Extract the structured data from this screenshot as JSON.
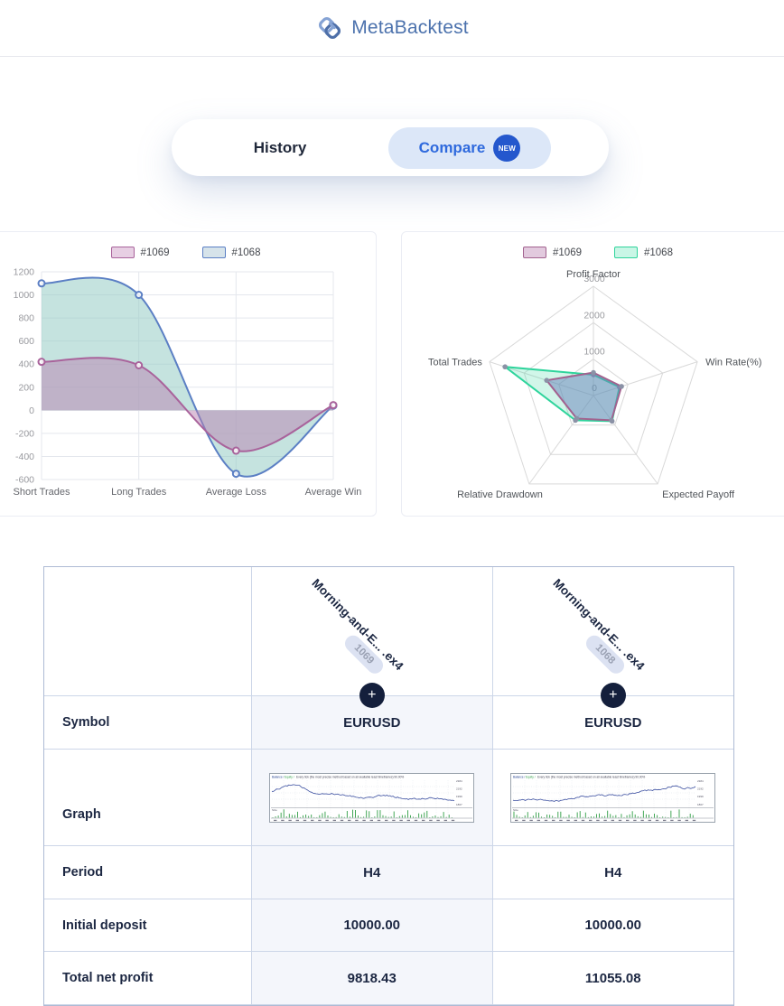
{
  "brand": {
    "name": "MetaBacktest"
  },
  "nav": {
    "history_label": "History",
    "compare_label": "Compare",
    "new_badge": "NEW"
  },
  "chart_data": [
    {
      "type": "area",
      "title": "",
      "categories": [
        "Short Trades",
        "Long Trades",
        "Average Loss",
        "Average Win"
      ],
      "series": [
        {
          "name": "#1069",
          "values": [
            420,
            390,
            -350,
            45
          ],
          "line_color": "#a9639b",
          "fill_color": "rgba(186,130,178,0.5)",
          "legend_fill": "#e7cfe3"
        },
        {
          "name": "#1068",
          "values": [
            1100,
            1000,
            -550,
            40
          ],
          "line_color": "#5b7fc4",
          "fill_color": "rgba(150,204,197,0.55)",
          "legend_fill": "#d6e3ea"
        }
      ],
      "ylim": [
        -600,
        1200
      ],
      "yticks": [
        1200,
        1000,
        800,
        600,
        400,
        200,
        0,
        -200,
        -400,
        -600
      ],
      "grid": true,
      "smooth": true,
      "legend_position": "top"
    },
    {
      "type": "radar",
      "indicators": [
        "Profit Factor",
        "Win Rate(%)",
        "Expected Payoff",
        "Relative Drawdown",
        "Total Trades"
      ],
      "radial_ticks": [
        3000,
        2000,
        1000,
        0
      ],
      "max": 3000,
      "series": [
        {
          "name": "#1069",
          "values": [
            630,
            810,
            840,
            780,
            1350
          ],
          "line_color": "#a2628f",
          "fill_color": "rgba(105,128,188,0.5)",
          "legend_fill": "#e2cade"
        },
        {
          "name": "#1068",
          "values": [
            570,
            750,
            870,
            840,
            2550
          ],
          "line_color": "#2fd49c",
          "fill_color": "rgba(47,212,156,0.22)",
          "legend_fill": "#c9f6e6"
        }
      ],
      "legend_position": "top"
    }
  ],
  "comparison_table": {
    "columns": [
      {
        "file_name": "Morning-and-E... .ex4",
        "badge": "1069",
        "add_button": "+"
      },
      {
        "file_name": "Morning-and-E... .ex4",
        "badge": "1068",
        "add_button": "+"
      }
    ],
    "rows": [
      {
        "label": "Symbol",
        "values": [
          "EURUSD",
          "EURUSD"
        ]
      },
      {
        "label": "Graph",
        "graphs": [
          {
            "trend": "volatile-declining"
          },
          {
            "trend": "rising"
          }
        ]
      },
      {
        "label": "Period",
        "values": [
          "H4",
          "H4"
        ]
      },
      {
        "label": "Initial deposit",
        "values": [
          "10000.00",
          "10000.00"
        ]
      },
      {
        "label": "Total net profit",
        "values": [
          "9818.43",
          "11055.08"
        ]
      }
    ]
  }
}
